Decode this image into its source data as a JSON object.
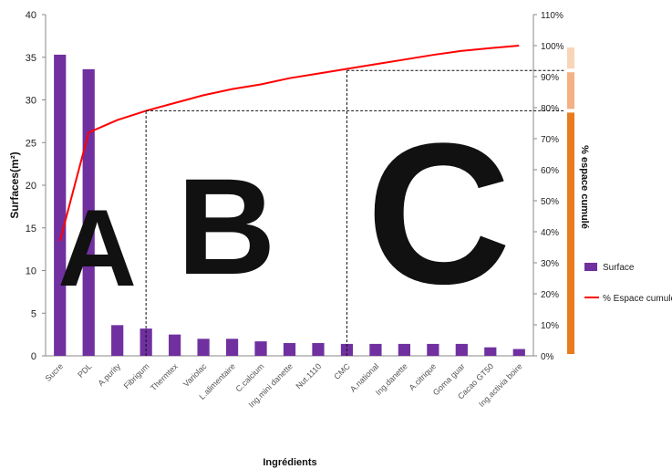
{
  "chart_data": {
    "type": "bar",
    "categories": [
      "Sucre",
      "PDL",
      "A.purity",
      "Fibrigum",
      "Thermtex",
      "Variolac",
      "L.alimentaire",
      "C.calcium",
      "Ing.mini danette",
      "Nut.1110",
      "CMC",
      "A.national",
      "Ing.danette",
      "A.citrique",
      "Goma guar",
      "Cacao GT50",
      "Ing.activia boire"
    ],
    "xlabel": "Ingrédients",
    "ylabel": "Surfaces(m²)",
    "y2label": "% espace cumulé",
    "ylim": [
      0,
      40
    ],
    "y2lim": [
      0,
      110
    ],
    "yticks": [
      "0",
      "5",
      "10",
      "15",
      "20",
      "25",
      "30",
      "35",
      "40"
    ],
    "y2ticks": [
      "0%",
      "10%",
      "20%",
      "30%",
      "40%",
      "50%",
      "60%",
      "70%",
      "80%",
      "90%",
      "100%",
      "110%"
    ],
    "grid": false,
    "legend_position": "right",
    "series": [
      {
        "name": "Surface",
        "kind": "bar",
        "axis": "left",
        "color": "#7030A0",
        "values": [
          35.3,
          33.6,
          3.6,
          3.2,
          2.5,
          2.0,
          2.0,
          1.7,
          1.5,
          1.5,
          1.4,
          1.4,
          1.4,
          1.4,
          1.4,
          1.0,
          0.8
        ]
      },
      {
        "name": "% Espace cumulé",
        "kind": "line",
        "axis": "right",
        "color": "#FF0000",
        "values": [
          37,
          72,
          76,
          79,
          81.5,
          84,
          86,
          87.5,
          89.5,
          91,
          92.5,
          94,
          95.5,
          97,
          98.3,
          99.2,
          100
        ]
      }
    ],
    "zones": [
      {
        "label": "A",
        "color": "#F8D5B8"
      },
      {
        "label": "B",
        "color": "#F4B183"
      },
      {
        "label": "C",
        "color": "#E97B1F"
      }
    ],
    "thresholds": [
      {
        "category_index": 3,
        "percent": 79
      },
      {
        "category_index": 10,
        "percent": 92
      }
    ]
  }
}
